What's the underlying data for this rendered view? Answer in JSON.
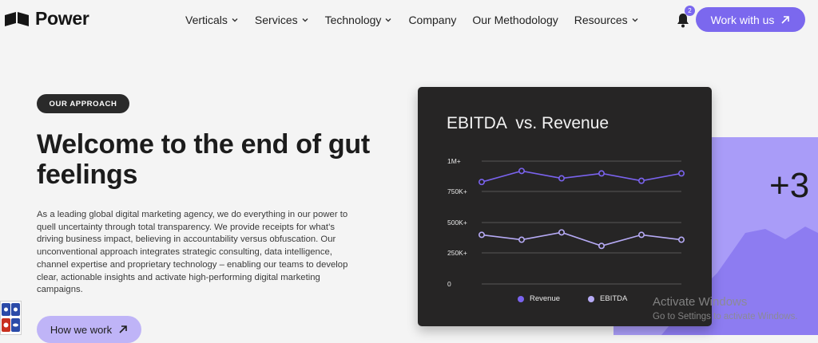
{
  "header": {
    "brand": "Power",
    "nav": [
      {
        "label": "Verticals",
        "dropdown": true
      },
      {
        "label": "Services",
        "dropdown": true
      },
      {
        "label": "Technology",
        "dropdown": true
      },
      {
        "label": "Company",
        "dropdown": false
      },
      {
        "label": "Our Methodology",
        "dropdown": false
      },
      {
        "label": "Resources",
        "dropdown": true
      }
    ],
    "notification_count": "2",
    "cta_label": "Work with us"
  },
  "hero": {
    "eyebrow": "OUR APPROACH",
    "title": "Welcome to the end of gut feelings",
    "body": "As a leading global digital marketing agency, we do everything in our power to quell uncertainty through total transparency. We provide receipts for what’s driving business impact, believing in accountability versus obfuscation. Our unconventional approach integrates strategic consulting, data intelligence, channel expertise and proprietary technology – enabling our teams to develop clear, actionable insights and activate high-performing digital marketing campaigns.",
    "button_label": "How we work",
    "stat_partial": "+3"
  },
  "colors": {
    "accent": "#7b68ee",
    "revenue": "#7a63ee",
    "ebitda": "#b6aaf5",
    "card_bg": "#262525",
    "backdrop": "#a99cf8"
  },
  "chart_data": {
    "type": "line",
    "title": "EBITDA  vs. Revenue",
    "y_ticks": [
      "1M+",
      "750K+",
      "500K+",
      "250K+",
      "0"
    ],
    "ylim": [
      0,
      1000000
    ],
    "grid": true,
    "legend_position": "bottom",
    "series": [
      {
        "name": "Revenue",
        "values": [
          830000,
          920000,
          860000,
          900000,
          840000,
          900000
        ]
      },
      {
        "name": "EBITDA",
        "values": [
          400000,
          360000,
          420000,
          310000,
          400000,
          360000
        ]
      }
    ]
  },
  "watermark": {
    "title": "Activate Windows",
    "subtitle": "Go to Settings to activate Windows."
  }
}
